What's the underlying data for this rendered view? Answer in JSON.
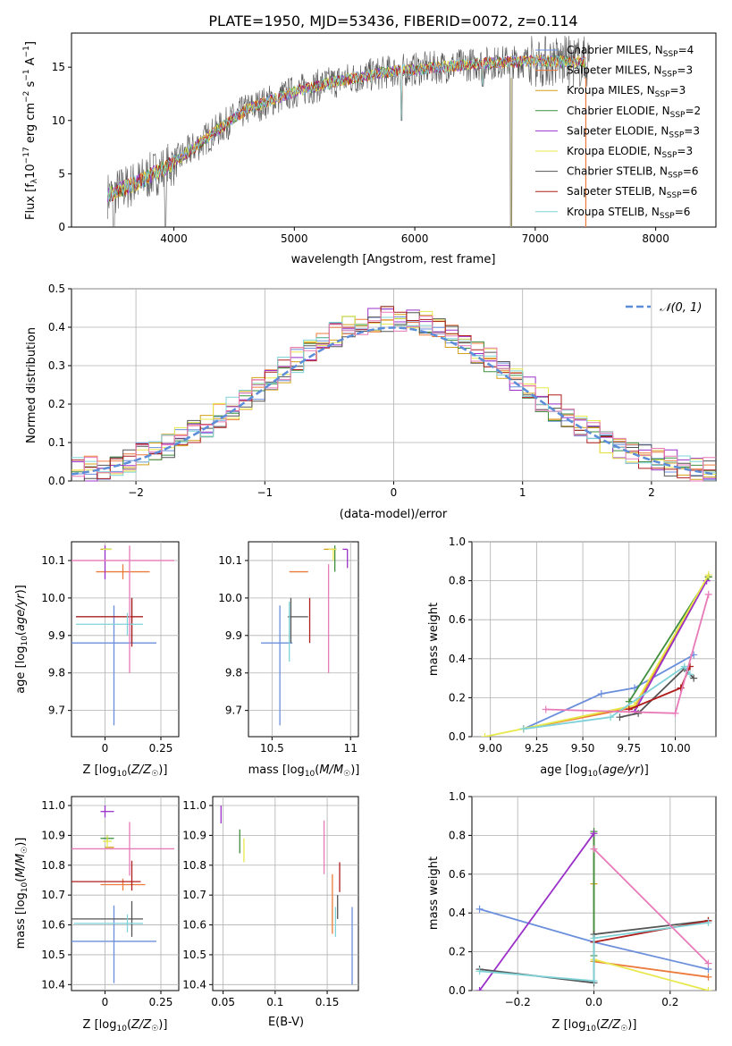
{
  "title": "PLATE=1950, MJD=53436, FIBERID=0072, z=0.114",
  "colors": {
    "chabrier_miles": "#6b8fdc",
    "salpeter_miles": "#ec7a3a",
    "kroupa_miles": "#d4a017",
    "chabrier_elodie": "#3f8f3f",
    "salpeter_elodie": "#9b30c8",
    "kroupa_elodie": "#e8e84c",
    "chabrier_stelib": "#555555",
    "salpeter_stelib": "#b01d1d",
    "kroupa_stelib": "#7fd3d8",
    "pink": "#e87ab8",
    "yellowgreen": "#c8e06a",
    "normal": "#5b8dd9"
  },
  "chart_data": [
    {
      "id": "spectrum",
      "type": "line",
      "xlabel": "wavelength [Angstrom, rest frame]",
      "xlim": [
        3150,
        8500
      ],
      "ylim": [
        0,
        18.2
      ],
      "xticks": [
        4000,
        5000,
        6000,
        7000,
        8000
      ],
      "yticks": [
        0,
        5,
        10,
        15
      ],
      "grid": false,
      "legend_position": "top-right",
      "legend": [
        {
          "label": "Chabrier MILES, N",
          "sub": "SSP",
          "tail": "=4",
          "color": "chabrier_miles"
        },
        {
          "label": "Salpeter MILES, N",
          "sub": "SSP",
          "tail": "=3",
          "color": "salpeter_miles"
        },
        {
          "label": "Kroupa MILES, N",
          "sub": "SSP",
          "tail": "=3",
          "color": "kroupa_miles"
        },
        {
          "label": "Chabrier ELODIE, N",
          "sub": "SSP",
          "tail": "=2",
          "color": "chabrier_elodie"
        },
        {
          "label": "Salpeter ELODIE, N",
          "sub": "SSP",
          "tail": "=3",
          "color": "salpeter_elodie"
        },
        {
          "label": "Kroupa ELODIE, N",
          "sub": "SSP",
          "tail": "=3",
          "color": "kroupa_elodie"
        },
        {
          "label": "Chabrier STELIB, N",
          "sub": "SSP",
          "tail": "=6",
          "color": "chabrier_stelib"
        },
        {
          "label": "Salpeter STELIB, N",
          "sub": "SSP",
          "tail": "=6",
          "color": "salpeter_stelib"
        },
        {
          "label": "Kroupa STELIB, N",
          "sub": "SSP",
          "tail": "=6",
          "color": "kroupa_stelib"
        }
      ],
      "continuum": {
        "x": [
          3450,
          3700,
          4000,
          4300,
          4600,
          5000,
          5400,
          5800,
          6200,
          6600,
          7000,
          7300
        ],
        "y": [
          3.0,
          4.2,
          6.0,
          8.6,
          11.0,
          12.7,
          13.8,
          14.6,
          15.0,
          15.4,
          15.6,
          15.5
        ]
      },
      "dips": [
        {
          "x": 3500,
          "y": 0
        },
        {
          "x": 3930,
          "y": 0
        },
        {
          "x": 4860,
          "y": 11.8
        },
        {
          "x": 5890,
          "y": 10.0
        },
        {
          "x": 6563,
          "y": 13.2
        },
        {
          "x": 6800,
          "y": 0
        },
        {
          "x": 7420,
          "y": 0
        }
      ]
    },
    {
      "id": "residuals",
      "type": "step-histogram",
      "xlabel": "(data-model)/error",
      "ylabel": "Normed distribution",
      "xlim": [
        -2.5,
        2.5
      ],
      "ylim": [
        0,
        0.5
      ],
      "xticks": [
        -2,
        -1,
        0,
        1,
        2
      ],
      "yticks": [
        0.0,
        0.1,
        0.2,
        0.3,
        0.4,
        0.5
      ],
      "grid": true,
      "legend_position": "top-right",
      "legend": [
        {
          "label": "N(0,1)",
          "style": "dashed",
          "color": "normal"
        }
      ],
      "bins": [
        -2.5,
        2.5,
        50
      ]
    },
    {
      "id": "age_vs_Z",
      "type": "errorbar",
      "xlabel": "Z [log10(Z/Z☉)]",
      "ylabel": "age [log10(age/yr)]",
      "xlim": [
        -0.15,
        0.33
      ],
      "ylim": [
        9.63,
        10.15
      ],
      "xticks": [
        0.0,
        0.25
      ],
      "yticks": [
        9.7,
        9.8,
        9.9,
        10.0,
        10.1
      ],
      "grid": true,
      "points": [
        {
          "x": 0.04,
          "y": 9.88,
          "xerr": [
            0.19,
            0.19
          ],
          "yerr": [
            0.22,
            0.1
          ],
          "color": "chabrier_miles"
        },
        {
          "x": 0.08,
          "y": 10.07,
          "xerr": [
            0.12,
            0.12
          ],
          "yerr": [
            0.02,
            0.02
          ],
          "color": "salpeter_miles"
        },
        {
          "x": 0.0,
          "y": 10.13,
          "xerr": [
            0.02,
            0.02
          ],
          "yerr": [
            0.0,
            0.0
          ],
          "color": "kroupa_miles"
        },
        {
          "x": 0.01,
          "y": 10.13,
          "xerr": [
            0.02,
            0.02
          ],
          "yerr": [
            0.0,
            0.0
          ],
          "color": "chabrier_elodie"
        },
        {
          "x": 0.0,
          "y": 10.1,
          "xerr": [
            0.0,
            0.0
          ],
          "yerr": [
            0.05,
            0.04
          ],
          "color": "salpeter_elodie"
        },
        {
          "x": 0.01,
          "y": 10.13,
          "xerr": [
            0.02,
            0.02
          ],
          "yerr": [
            0.0,
            0.0
          ],
          "color": "kroupa_elodie"
        },
        {
          "x": 0.12,
          "y": 9.95,
          "xerr": [
            0.25,
            0.05
          ],
          "yerr": [
            0.07,
            0.05
          ],
          "color": "chabrier_stelib"
        },
        {
          "x": 0.12,
          "y": 9.95,
          "xerr": [
            0.25,
            0.05
          ],
          "yerr": [
            0.08,
            0.05
          ],
          "color": "salpeter_stelib"
        },
        {
          "x": 0.1,
          "y": 9.93,
          "xerr": [
            0.23,
            0.07
          ],
          "yerr": [
            0.03,
            0.03
          ],
          "color": "kroupa_stelib"
        },
        {
          "x": 0.11,
          "y": 10.1,
          "xerr": [
            0.26,
            0.2
          ],
          "yerr": [
            0.3,
            0.04
          ],
          "color": "pink"
        }
      ]
    },
    {
      "id": "age_vs_mass",
      "type": "errorbar",
      "xlabel": "mass [log10(M/M☉)]",
      "xlim": [
        10.35,
        11.05
      ],
      "ylim": [
        9.63,
        10.15
      ],
      "xticks": [
        10.5,
        11.0
      ],
      "yticks": [
        9.7,
        9.8,
        9.9,
        10.0,
        10.1
      ],
      "grid": true,
      "points": [
        {
          "x": 10.55,
          "y": 9.88,
          "xerr": [
            0.12,
            0.08
          ],
          "yerr": [
            0.22,
            0.1
          ],
          "color": "chabrier_miles"
        },
        {
          "x": 10.73,
          "y": 10.07,
          "xerr": [
            0.12,
            0.0
          ],
          "yerr": [
            0.0,
            0.0
          ],
          "color": "salpeter_miles"
        },
        {
          "x": 10.88,
          "y": 10.13,
          "xerr": [
            0.05,
            0.02
          ],
          "yerr": [
            0.0,
            0.0
          ],
          "color": "kroupa_miles"
        },
        {
          "x": 10.9,
          "y": 10.13,
          "xerr": [
            0.02,
            0.01
          ],
          "yerr": [
            0.06,
            0.01
          ],
          "color": "chabrier_elodie"
        },
        {
          "x": 10.98,
          "y": 10.13,
          "xerr": [
            0.03,
            0.0
          ],
          "yerr": [
            0.05,
            0.0
          ],
          "color": "salpeter_elodie"
        },
        {
          "x": 10.89,
          "y": 10.13,
          "xerr": [
            0.03,
            0.02
          ],
          "yerr": [
            0.03,
            0.0
          ],
          "color": "kroupa_elodie"
        },
        {
          "x": 10.62,
          "y": 9.95,
          "xerr": [
            0.02,
            0.11
          ],
          "yerr": [
            0.07,
            0.05
          ],
          "color": "chabrier_stelib"
        },
        {
          "x": 10.74,
          "y": 9.95,
          "xerr": [
            0.0,
            0.0
          ],
          "yerr": [
            0.07,
            0.05
          ],
          "color": "salpeter_stelib"
        },
        {
          "x": 10.61,
          "y": 9.93,
          "xerr": [
            0.0,
            0.0
          ],
          "yerr": [
            0.1,
            0.06
          ],
          "color": "kroupa_stelib"
        },
        {
          "x": 10.86,
          "y": 10.09,
          "xerr": [
            0.0,
            0.0
          ],
          "yerr": [
            0.29,
            0.0
          ],
          "color": "pink"
        }
      ]
    },
    {
      "id": "weight_vs_age",
      "type": "line",
      "xlabel": "age [log10(age/yr)]",
      "ylabel": "mass weight",
      "xlim": [
        8.9,
        10.22
      ],
      "ylim": [
        0,
        1.0
      ],
      "xticks": [
        9.0,
        9.25,
        9.5,
        9.75,
        10.0
      ],
      "yticks": [
        0.0,
        0.2,
        0.4,
        0.6,
        0.8,
        1.0
      ],
      "grid": true,
      "series": [
        {
          "color": "chabrier_miles",
          "x": [
            9.18,
            9.6,
            9.78,
            10.1
          ],
          "y": [
            0.04,
            0.22,
            0.25,
            0.42
          ]
        },
        {
          "color": "salpeter_miles",
          "x": [
            9.18,
            9.78,
            10.18
          ],
          "y": [
            0.04,
            0.15,
            0.82
          ]
        },
        {
          "color": "kroupa_miles",
          "x": [
            9.18,
            9.78,
            10.18
          ],
          "y": [
            0.04,
            0.16,
            0.82
          ]
        },
        {
          "color": "chabrier_elodie",
          "x": [
            9.75,
            10.18
          ],
          "y": [
            0.18,
            0.82
          ]
        },
        {
          "color": "salpeter_elodie",
          "x": [
            9.78,
            10.17
          ],
          "y": [
            0.13,
            0.8
          ]
        },
        {
          "color": "kroupa_elodie",
          "x": [
            8.97,
            9.78,
            10.18
          ],
          "y": [
            0.0,
            0.16,
            0.83
          ]
        },
        {
          "color": "chabrier_stelib",
          "x": [
            9.7,
            9.8,
            10.05,
            10.1
          ],
          "y": [
            0.1,
            0.12,
            0.35,
            0.3
          ]
        },
        {
          "color": "salpeter_stelib",
          "x": [
            9.75,
            10.03,
            10.08
          ],
          "y": [
            0.14,
            0.25,
            0.36
          ]
        },
        {
          "color": "kroupa_stelib",
          "x": [
            9.18,
            9.65,
            10.05,
            10.08
          ],
          "y": [
            0.04,
            0.1,
            0.36,
            0.32
          ]
        },
        {
          "color": "pink",
          "x": [
            9.3,
            10.0,
            10.18
          ],
          "y": [
            0.14,
            0.12,
            0.73
          ]
        }
      ]
    },
    {
      "id": "mass_vs_Z",
      "type": "errorbar",
      "xlabel": "Z [log10(Z/Z☉)]",
      "ylabel": "mass [log10(M/M☉)]",
      "xlim": [
        -0.15,
        0.33
      ],
      "ylim": [
        10.38,
        11.03
      ],
      "xticks": [
        0.0,
        0.25
      ],
      "yticks": [
        10.4,
        10.5,
        10.6,
        10.7,
        10.8,
        10.9,
        11.0
      ],
      "grid": true,
      "points": [
        {
          "x": 0.04,
          "y": 10.545,
          "xerr": [
            0.19,
            0.19
          ],
          "yerr": [
            0.14,
            0.12
          ],
          "color": "chabrier_miles"
        },
        {
          "x": 0.08,
          "y": 10.735,
          "xerr": [
            0.1,
            0.1
          ],
          "yerr": [
            0.02,
            0.02
          ],
          "color": "salpeter_miles"
        },
        {
          "x": 0.0,
          "y": 10.86,
          "xerr": [
            0.0,
            0.04
          ],
          "yerr": [
            0.0,
            0.0
          ],
          "color": "kroupa_miles"
        },
        {
          "x": 0.01,
          "y": 10.89,
          "xerr": [
            0.03,
            0.03
          ],
          "yerr": [
            0.01,
            0.01
          ],
          "color": "chabrier_elodie"
        },
        {
          "x": 0.0,
          "y": 10.98,
          "xerr": [
            0.02,
            0.04
          ],
          "yerr": [
            0.02,
            0.02
          ],
          "color": "salpeter_elodie"
        },
        {
          "x": 0.01,
          "y": 10.88,
          "xerr": [
            0.02,
            0.02
          ],
          "yerr": [
            0.02,
            0.02
          ],
          "color": "kroupa_elodie"
        },
        {
          "x": 0.12,
          "y": 10.62,
          "xerr": [
            0.27,
            0.05
          ],
          "yerr": [
            0.06,
            0.06
          ],
          "color": "chabrier_stelib"
        },
        {
          "x": 0.12,
          "y": 10.745,
          "xerr": [
            0.27,
            0.04
          ],
          "yerr": [
            0.03,
            0.07
          ],
          "color": "salpeter_stelib"
        },
        {
          "x": 0.1,
          "y": 10.605,
          "xerr": [
            0.24,
            0.07
          ],
          "yerr": [
            0.03,
            0.03
          ],
          "color": "kroupa_stelib"
        },
        {
          "x": 0.11,
          "y": 10.855,
          "xerr": [
            0.26,
            0.2
          ],
          "yerr": [
            0.09,
            0.09
          ],
          "color": "pink"
        }
      ]
    },
    {
      "id": "mass_vs_ebv",
      "type": "errorbar",
      "xlabel": "E(B-V)",
      "xlim": [
        0.04,
        0.18
      ],
      "ylim": [
        10.38,
        11.03
      ],
      "xticks": [
        0.05,
        0.1,
        0.15
      ],
      "yticks": [
        10.4,
        10.5,
        10.6,
        10.7,
        10.8,
        10.9,
        11.0
      ],
      "grid": true,
      "points": [
        {
          "x": 0.174,
          "y": 10.53,
          "xerr": [
            0.0,
            0.0
          ],
          "yerr": [
            0.13,
            0.13
          ],
          "color": "chabrier_miles"
        },
        {
          "x": 0.155,
          "y": 10.67,
          "xerr": [
            0.0,
            0.0
          ],
          "yerr": [
            0.1,
            0.1
          ],
          "color": "salpeter_miles"
        },
        {
          "x": 0.048,
          "y": 10.97,
          "xerr": [
            0.0,
            0.0
          ],
          "yerr": [
            0.03,
            0.03
          ],
          "color": "salpeter_elodie"
        },
        {
          "x": 0.066,
          "y": 10.88,
          "xerr": [
            0.0,
            0.0
          ],
          "yerr": [
            0.04,
            0.04
          ],
          "color": "chabrier_elodie"
        },
        {
          "x": 0.07,
          "y": 10.85,
          "xerr": [
            0.0,
            0.0
          ],
          "yerr": [
            0.04,
            0.04
          ],
          "color": "kroupa_elodie"
        },
        {
          "x": 0.162,
          "y": 10.76,
          "xerr": [
            0.0,
            0.0
          ],
          "yerr": [
            0.05,
            0.05
          ],
          "color": "salpeter_stelib"
        },
        {
          "x": 0.16,
          "y": 10.66,
          "xerr": [
            0.0,
            0.0
          ],
          "yerr": [
            0.04,
            0.04
          ],
          "color": "chabrier_stelib"
        },
        {
          "x": 0.158,
          "y": 10.61,
          "xerr": [
            0.0,
            0.0
          ],
          "yerr": [
            0.05,
            0.05
          ],
          "color": "kroupa_stelib"
        },
        {
          "x": 0.147,
          "y": 10.86,
          "xerr": [
            0.0,
            0.0
          ],
          "yerr": [
            0.09,
            0.09
          ],
          "color": "pink"
        }
      ]
    },
    {
      "id": "weight_vs_Z",
      "type": "line",
      "xlabel": "Z [log10(Z/Z☉)]",
      "ylabel": "mass weight",
      "xlim": [
        -0.32,
        0.32
      ],
      "ylim": [
        0,
        1.0
      ],
      "xticks": [
        -0.2,
        0.0,
        0.2
      ],
      "yticks": [
        0.0,
        0.2,
        0.4,
        0.6,
        0.8,
        1.0
      ],
      "grid": true,
      "series": [
        {
          "color": "chabrier_miles",
          "x": [
            -0.3,
            0.0,
            0.3
          ],
          "y": [
            0.42,
            0.25,
            0.11
          ]
        },
        {
          "color": "salpeter_miles",
          "x": [
            0.0,
            0.3
          ],
          "y": [
            0.15,
            0.07
          ]
        },
        {
          "color": "kroupa_miles",
          "x": [
            0.0,
            0.0,
            0.0
          ],
          "y": [
            0.82,
            0.55,
            0.15
          ]
        },
        {
          "color": "chabrier_elodie",
          "x": [
            0.0,
            0.0
          ],
          "y": [
            0.82,
            0.18
          ]
        },
        {
          "color": "salpeter_elodie",
          "x": [
            -0.3,
            0.0
          ],
          "y": [
            0.0,
            0.81
          ]
        },
        {
          "color": "kroupa_elodie",
          "x": [
            0.0,
            0.3
          ],
          "y": [
            0.16,
            0.0
          ]
        },
        {
          "color": "chabrier_stelib",
          "x": [
            -0.3,
            0.0,
            0.0,
            0.3
          ],
          "y": [
            0.11,
            0.04,
            0.29,
            0.36
          ]
        },
        {
          "color": "salpeter_stelib",
          "x": [
            0.0,
            0.3
          ],
          "y": [
            0.25,
            0.36
          ]
        },
        {
          "color": "kroupa_stelib",
          "x": [
            -0.3,
            0.0,
            0.0,
            0.3
          ],
          "y": [
            0.1,
            0.05,
            0.27,
            0.35
          ]
        },
        {
          "color": "pink",
          "x": [
            0.0,
            0.3
          ],
          "y": [
            0.73,
            0.14
          ]
        }
      ]
    }
  ]
}
